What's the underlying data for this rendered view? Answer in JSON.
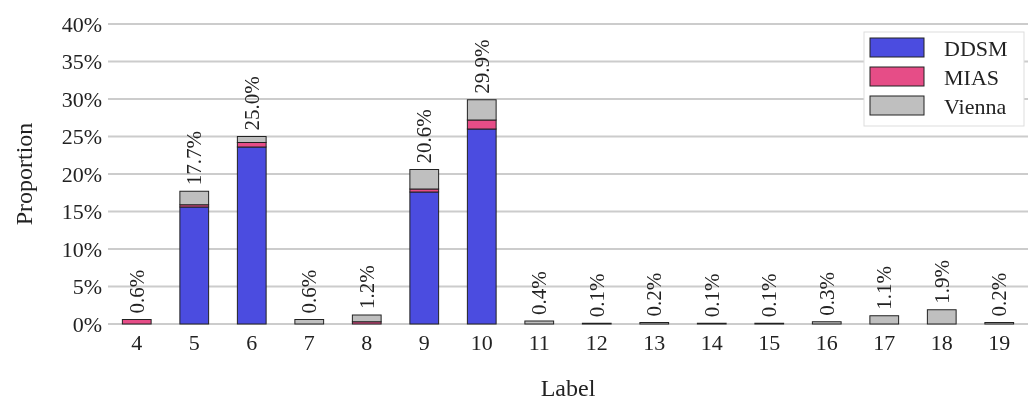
{
  "chart_data": {
    "type": "bar",
    "stacked": true,
    "xlabel": "Label",
    "ylabel": "Proportion",
    "categories": [
      "4",
      "5",
      "6",
      "7",
      "8",
      "9",
      "10",
      "11",
      "12",
      "13",
      "14",
      "15",
      "16",
      "17",
      "18",
      "19"
    ],
    "series": [
      {
        "name": "DDSM",
        "color": "#4b4ce0",
        "values": [
          0,
          15.6,
          23.6,
          0,
          0,
          17.6,
          26.0,
          0,
          0,
          0,
          0,
          0,
          0,
          0,
          0,
          0
        ]
      },
      {
        "name": "MIAS",
        "color": "#e64d87",
        "values": [
          0.6,
          0.3,
          0.6,
          0,
          0.3,
          0.4,
          1.2,
          0,
          0,
          0,
          0,
          0,
          0,
          0,
          0,
          0
        ]
      },
      {
        "name": "Vienna",
        "color": "#bfbfbf",
        "values": [
          0,
          1.8,
          0.8,
          0.6,
          0.9,
          2.6,
          2.7,
          0.4,
          0.1,
          0.2,
          0.1,
          0.1,
          0.3,
          1.1,
          1.9,
          0.2
        ]
      }
    ],
    "totals": [
      "0.6%",
      "17.7%",
      "25.0%",
      "0.6%",
      "1.2%",
      "20.6%",
      "29.9%",
      "0.4%",
      "0.1%",
      "0.2%",
      "0.1%",
      "0.1%",
      "0.3%",
      "1.1%",
      "1.9%",
      "0.2%"
    ],
    "ylim": [
      0,
      40
    ],
    "yticks": [
      {
        "value": 0,
        "label": "0%"
      },
      {
        "value": 5,
        "label": "5%"
      },
      {
        "value": 10,
        "label": "10%"
      },
      {
        "value": 15,
        "label": "15%"
      },
      {
        "value": 20,
        "label": "20%"
      },
      {
        "value": 25,
        "label": "25%"
      },
      {
        "value": 30,
        "label": "30%"
      },
      {
        "value": 35,
        "label": "35%"
      },
      {
        "value": 40,
        "label": "40%"
      }
    ],
    "grid": "y",
    "legend": "top right"
  }
}
